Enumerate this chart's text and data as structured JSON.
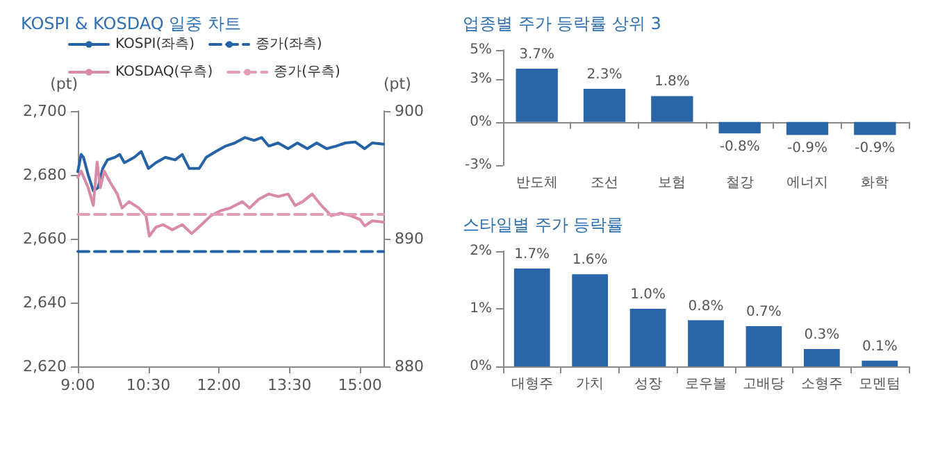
{
  "chart_data": [
    {
      "type": "line",
      "title": "KOSPI & KOSDAQ 일중 차트",
      "ylabel": "(pt)",
      "y2label": "(pt)",
      "legend": "top",
      "marker": "none",
      "xlim": [
        9,
        15.5
      ],
      "xticks": [
        {
          "value": 9,
          "label": "9:00"
        },
        {
          "value": 10.5,
          "label": "10:30"
        },
        {
          "value": 12,
          "label": "12:00"
        },
        {
          "value": 13.5,
          "label": "13:30"
        },
        {
          "value": 15,
          "label": "15:00"
        }
      ],
      "ylim": [
        2620,
        2700
      ],
      "yticks": [
        {
          "value": 2620,
          "label": "2,620"
        },
        {
          "value": 2640,
          "label": "2,640"
        },
        {
          "value": 2660,
          "label": "2,660"
        },
        {
          "value": 2680,
          "label": "2,680"
        },
        {
          "value": 2700,
          "label": "2,700"
        }
      ],
      "y2lim": [
        880,
        900
      ],
      "y2ticks": [
        880,
        890,
        900
      ],
      "series": [
        {
          "name": "KOSPI(좌측)",
          "color": "#2563a6",
          "line_style": "solid",
          "x": [
            9,
            9.07,
            9.12,
            9.22,
            9.33,
            9.43,
            9.53,
            9.63,
            9.79,
            9.89,
            9.99,
            10.2,
            10.35,
            10.5,
            10.66,
            10.86,
            11.07,
            11.22,
            11.37,
            11.58,
            11.73,
            11.93,
            12.14,
            12.34,
            12.55,
            12.75,
            12.91,
            13.06,
            13.26,
            13.47,
            13.67,
            13.88,
            14.08,
            14.29,
            14.49,
            14.69,
            14.9,
            15.1,
            15.26,
            15.5
          ],
          "values": [
            2681,
            2686.4,
            2685.5,
            2680,
            2675,
            2676,
            2682,
            2684.7,
            2685.5,
            2686.4,
            2683.8,
            2685.5,
            2687.3,
            2682,
            2683.8,
            2685.5,
            2684.7,
            2686.4,
            2682,
            2682,
            2685.5,
            2687.3,
            2689,
            2690,
            2691.7,
            2690.8,
            2691.7,
            2689,
            2690,
            2688.2,
            2690,
            2688.2,
            2690,
            2688.2,
            2689,
            2690,
            2690.3,
            2688.2,
            2690,
            2689.6
          ]
        },
        {
          "name": "종가(좌측)",
          "color": "#2563a6",
          "line_style": "dashed",
          "x": [
            9,
            15.5
          ],
          "values": [
            2656,
            2656
          ]
        },
        {
          "name": "KOSDAQ(우측)",
          "color": "#d98aa8",
          "line_style": "solid",
          "axis": "y2",
          "x": [
            9,
            9.07,
            9.22,
            9.33,
            9.41,
            9.48,
            9.56,
            9.69,
            9.84,
            9.94,
            10.09,
            10.3,
            10.45,
            10.52,
            10.66,
            10.81,
            11.01,
            11.22,
            11.42,
            11.63,
            11.83,
            12.04,
            12.24,
            12.5,
            12.65,
            12.85,
            13.06,
            13.26,
            13.47,
            13.62,
            13.78,
            13.98,
            14.18,
            14.39,
            14.59,
            14.8,
            15.0,
            15.1,
            15.26,
            15.5
          ],
          "values": [
            894.8,
            895.3,
            894,
            892.6,
            896,
            894,
            895.3,
            894.4,
            893.5,
            892.4,
            892.9,
            892.4,
            891.8,
            890.2,
            890.9,
            891.1,
            890.7,
            891.1,
            890.4,
            891.1,
            891.8,
            892.2,
            892.4,
            892.9,
            892.4,
            893.1,
            893.5,
            893.3,
            893.5,
            892.6,
            892.9,
            893.5,
            892.6,
            891.8,
            892,
            891.8,
            891.5,
            891,
            891.4,
            891.3
          ]
        },
        {
          "name": "종가(우측)",
          "color": "#e39bb6",
          "line_style": "dashed",
          "axis": "y2",
          "x": [
            9,
            15.5
          ],
          "values": [
            891.9,
            891.9
          ]
        }
      ]
    },
    {
      "type": "bar",
      "title": "업종별 주가 등락률 상위 3",
      "categories": [
        "반도체",
        "조선",
        "보험",
        "철강",
        "에너지",
        "화학"
      ],
      "values": [
        3.7,
        2.3,
        1.8,
        -0.8,
        -0.9,
        -0.9
      ],
      "value_labels": [
        "3.7%",
        "2.3%",
        "1.8%",
        "-0.8%",
        "-0.9%",
        "-0.9%"
      ],
      "color": "#2a65a8",
      "ylim": [
        -3,
        5
      ],
      "yticks": [
        {
          "value": -3,
          "label": "-3%"
        },
        {
          "value": 0,
          "label": "0%"
        },
        {
          "value": 3,
          "label": "3%"
        },
        {
          "value": 5,
          "label": "5%"
        }
      ]
    },
    {
      "type": "bar",
      "title": "스타일별 주가 등락률",
      "categories": [
        "대형주",
        "가치",
        "성장",
        "로우볼",
        "고배당",
        "소형주",
        "모멘텀"
      ],
      "values": [
        1.7,
        1.6,
        1.0,
        0.8,
        0.7,
        0.3,
        0.1
      ],
      "value_labels": [
        "1.7%",
        "1.6%",
        "1.0%",
        "0.8%",
        "0.7%",
        "0.3%",
        "0.1%"
      ],
      "color": "#2a65a8",
      "ylim": [
        0,
        2
      ],
      "yticks": [
        {
          "value": 0,
          "label": "0%"
        },
        {
          "value": 1,
          "label": "1%"
        },
        {
          "value": 2,
          "label": "2%"
        }
      ]
    }
  ]
}
